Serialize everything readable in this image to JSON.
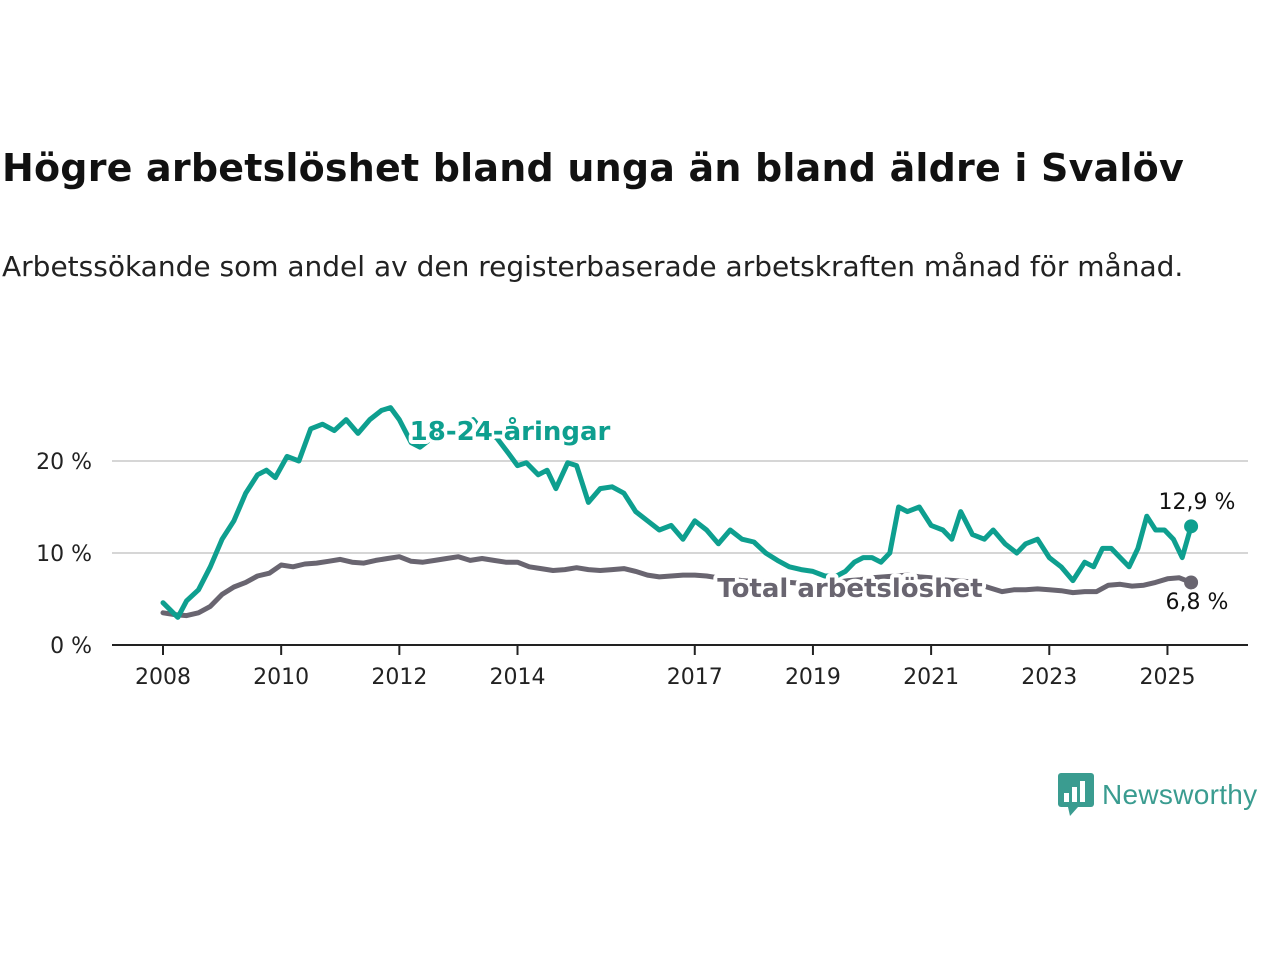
{
  "title": "Högre arbetslöshet bland unga än bland äldre i Svalöv",
  "subtitle": "Arbetssökande som andel av den registerbaserade arbetskraften månad för månad.",
  "brand": {
    "name": "Newsworthy",
    "icon": "bar-chart-speech-bubble-icon",
    "color": "#3a9c90"
  },
  "chart_data": {
    "type": "line",
    "xlim": [
      2008,
      2025.5
    ],
    "ylim": [
      0,
      25
    ],
    "y_ticks": [
      0,
      10,
      20
    ],
    "y_tick_labels": [
      "0 %",
      "10 %",
      "20 %"
    ],
    "x_ticks": [
      2008,
      2010,
      2012,
      2014,
      2017,
      2019,
      2021,
      2023,
      2025
    ],
    "x_tick_labels": [
      "2008",
      "2010",
      "2012",
      "2014",
      "2017",
      "2019",
      "2021",
      "2023",
      "2025"
    ],
    "grid": true,
    "series": [
      {
        "name": "18-24-åringar",
        "color": "#0e9f8f",
        "end_label": "12,9 %",
        "x": [
          2008.0,
          2008.25,
          2008.4,
          2008.6,
          2008.8,
          2009.0,
          2009.2,
          2009.4,
          2009.6,
          2009.75,
          2009.9,
          2010.1,
          2010.3,
          2010.5,
          2010.7,
          2010.9,
          2011.1,
          2011.3,
          2011.5,
          2011.7,
          2011.85,
          2012.0,
          2012.2,
          2012.35,
          2012.55,
          2012.75,
          2013.0,
          2013.25,
          2013.45,
          2013.65,
          2013.85,
          2014.0,
          2014.15,
          2014.35,
          2014.5,
          2014.65,
          2014.85,
          2015.0,
          2015.2,
          2015.4,
          2015.6,
          2015.8,
          2016.0,
          2016.2,
          2016.4,
          2016.6,
          2016.8,
          2017.0,
          2017.2,
          2017.4,
          2017.6,
          2017.8,
          2018.0,
          2018.2,
          2018.4,
          2018.6,
          2018.8,
          2019.0,
          2019.2,
          2019.4,
          2019.55,
          2019.7,
          2019.85,
          2020.0,
          2020.15,
          2020.3,
          2020.45,
          2020.6,
          2020.8,
          2021.0,
          2021.2,
          2021.35,
          2021.5,
          2021.7,
          2021.9,
          2022.05,
          2022.25,
          2022.45,
          2022.6,
          2022.8,
          2023.0,
          2023.2,
          2023.4,
          2023.6,
          2023.75,
          2023.9,
          2024.05,
          2024.2,
          2024.35,
          2024.5,
          2024.65,
          2024.8,
          2024.95,
          2025.1,
          2025.25,
          2025.4
        ],
        "y": [
          4.6,
          3.0,
          4.8,
          6.0,
          8.5,
          11.5,
          13.5,
          16.5,
          18.5,
          19.0,
          18.2,
          20.5,
          20.0,
          23.5,
          24.0,
          23.3,
          24.5,
          23.0,
          24.5,
          25.5,
          25.8,
          24.5,
          22.0,
          21.5,
          22.5,
          23.0,
          23.5,
          24.5,
          23.0,
          22.5,
          20.8,
          19.5,
          19.8,
          18.5,
          19.0,
          17.0,
          19.8,
          19.5,
          15.5,
          17.0,
          17.2,
          16.5,
          14.5,
          13.5,
          12.5,
          13.0,
          11.5,
          13.5,
          12.5,
          11.0,
          12.5,
          11.5,
          11.2,
          10.0,
          9.2,
          8.5,
          8.2,
          8.0,
          7.5,
          7.5,
          8.0,
          9.0,
          9.5,
          9.5,
          9.0,
          10.0,
          15.0,
          14.5,
          15.0,
          13.0,
          12.5,
          11.5,
          14.5,
          12.0,
          11.5,
          12.5,
          11.0,
          10.0,
          11.0,
          11.5,
          9.5,
          8.5,
          7.0,
          9.0,
          8.5,
          10.5,
          10.5,
          9.5,
          8.5,
          10.5,
          14.0,
          12.5,
          12.5,
          11.5,
          9.5,
          12.9
        ]
      },
      {
        "name": "Total arbetslöshet",
        "color": "#696570",
        "end_label": "6,8 %",
        "x": [
          2008.0,
          2008.2,
          2008.4,
          2008.6,
          2008.8,
          2009.0,
          2009.2,
          2009.4,
          2009.6,
          2009.8,
          2010.0,
          2010.2,
          2010.4,
          2010.6,
          2010.8,
          2011.0,
          2011.2,
          2011.4,
          2011.6,
          2011.8,
          2012.0,
          2012.2,
          2012.4,
          2012.6,
          2012.8,
          2013.0,
          2013.2,
          2013.4,
          2013.6,
          2013.8,
          2014.0,
          2014.2,
          2014.4,
          2014.6,
          2014.8,
          2015.0,
          2015.2,
          2015.4,
          2015.6,
          2015.8,
          2016.0,
          2016.2,
          2016.4,
          2016.6,
          2016.8,
          2017.0,
          2017.2,
          2017.4,
          2017.6,
          2017.8,
          2018.0,
          2018.2,
          2018.4,
          2018.6,
          2018.8,
          2019.0,
          2019.2,
          2019.4,
          2019.6,
          2019.8,
          2020.0,
          2020.2,
          2020.4,
          2020.6,
          2020.8,
          2021.0,
          2021.2,
          2021.4,
          2021.6,
          2021.8,
          2022.0,
          2022.2,
          2022.4,
          2022.6,
          2022.8,
          2023.0,
          2023.2,
          2023.4,
          2023.6,
          2023.8,
          2024.0,
          2024.2,
          2024.4,
          2024.6,
          2024.8,
          2025.0,
          2025.2,
          2025.4
        ],
        "y": [
          3.5,
          3.3,
          3.2,
          3.5,
          4.2,
          5.5,
          6.3,
          6.8,
          7.5,
          7.8,
          8.7,
          8.5,
          8.8,
          8.9,
          9.1,
          9.3,
          9.0,
          8.9,
          9.2,
          9.4,
          9.6,
          9.1,
          9.0,
          9.2,
          9.4,
          9.6,
          9.2,
          9.4,
          9.2,
          9.0,
          9.0,
          8.5,
          8.3,
          8.1,
          8.2,
          8.4,
          8.2,
          8.1,
          8.2,
          8.3,
          8.0,
          7.6,
          7.4,
          7.5,
          7.6,
          7.6,
          7.5,
          7.3,
          7.2,
          7.0,
          6.9,
          6.8,
          6.7,
          6.8,
          6.7,
          6.6,
          6.6,
          6.8,
          7.0,
          7.1,
          7.3,
          7.4,
          7.5,
          7.6,
          7.4,
          7.3,
          7.1,
          7.0,
          6.9,
          6.6,
          6.2,
          5.8,
          6.0,
          6.0,
          6.1,
          6.0,
          5.9,
          5.7,
          5.8,
          5.8,
          6.5,
          6.6,
          6.4,
          6.5,
          6.8,
          7.2,
          7.3,
          6.8
        ]
      }
    ]
  }
}
